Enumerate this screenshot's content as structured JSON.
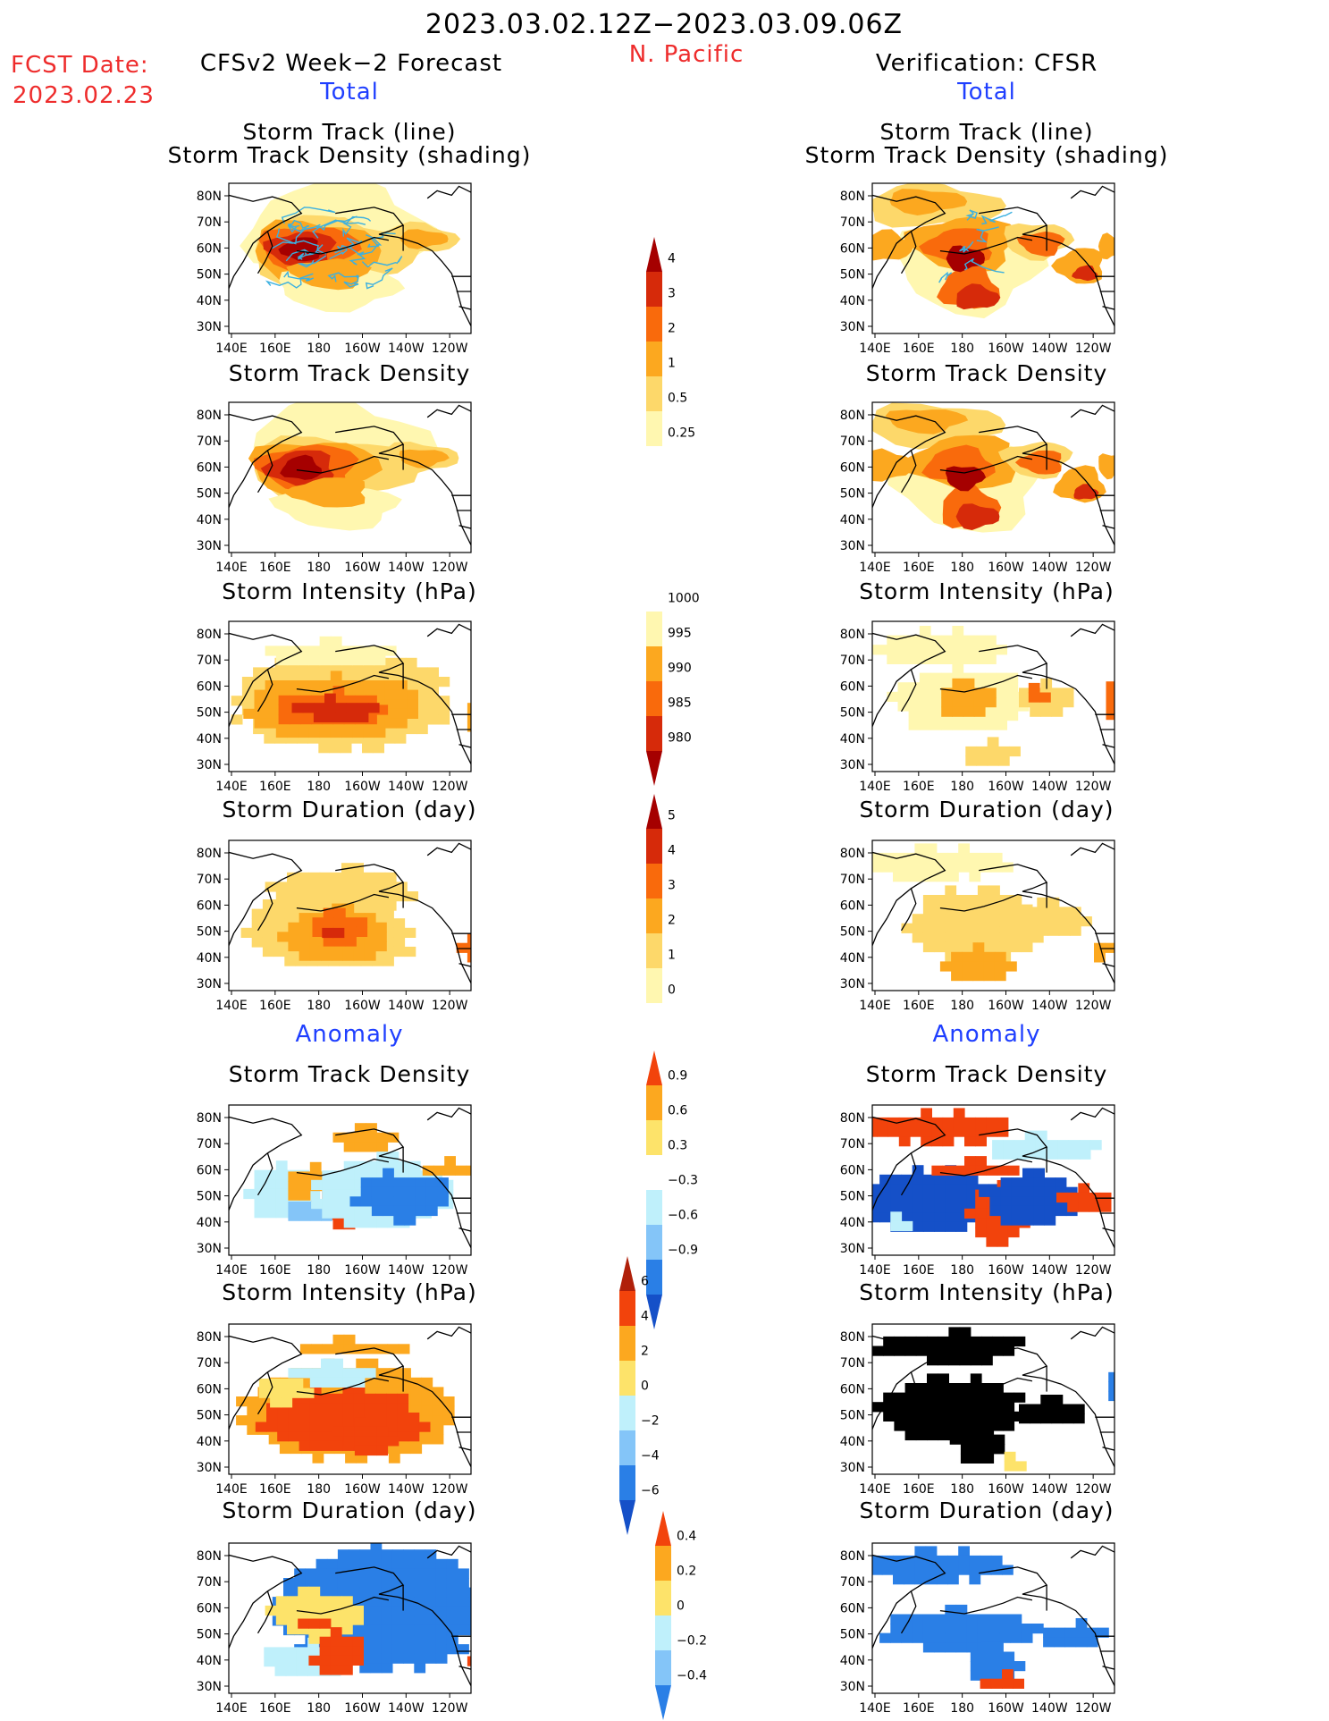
{
  "header": {
    "period": "2023.03.02.12Z−2023.03.09.06Z",
    "region": "N. Pacific",
    "fcst_label": "FCST Date:",
    "fcst_date": "2023.02.23",
    "left_title": "CFSv2 Week−2 Forecast",
    "right_title": "Verification: CFSR",
    "total_left": "Total",
    "total_right": "Total",
    "anomaly_left": "Anomaly",
    "anomaly_right": "Anomaly"
  },
  "colors": {
    "total_ramp": [
      "#fff7b0",
      "#fdd86a",
      "#fca81f",
      "#f96a0c",
      "#d62a0a",
      "#a50000"
    ],
    "anom_pos": [
      "#fde36a",
      "#fca81f",
      "#f2430c"
    ],
    "anom_neg": [
      "#bff0fb",
      "#84c5f8",
      "#2a7fe6",
      "#1550c8"
    ],
    "track_line": "#3bb0e0"
  },
  "chart_data": [
    {
      "id": "fcst-track-line",
      "type": "heatmap",
      "title": "Storm Track (line)",
      "subtitle": "Storm Track Density (shading)",
      "column": "forecast",
      "section": "total"
    },
    {
      "id": "fcst-track-density",
      "type": "heatmap",
      "title": "Storm Track Density",
      "column": "forecast",
      "section": "total"
    },
    {
      "id": "fcst-intensity",
      "type": "heatmap",
      "title": "Storm Intensity (hPa)",
      "column": "forecast",
      "section": "total"
    },
    {
      "id": "fcst-duration",
      "type": "heatmap",
      "title": "Storm Duration (day)",
      "column": "forecast",
      "section": "total"
    },
    {
      "id": "fcst-anom-density",
      "type": "heatmap",
      "title": "Storm Track Density",
      "column": "forecast",
      "section": "anomaly"
    },
    {
      "id": "fcst-anom-intensity",
      "type": "heatmap",
      "title": "Storm Intensity (hPa)",
      "column": "forecast",
      "section": "anomaly"
    },
    {
      "id": "fcst-anom-duration",
      "type": "heatmap",
      "title": "Storm Duration (day)",
      "column": "forecast",
      "section": "anomaly"
    },
    {
      "id": "ver-track-line",
      "type": "heatmap",
      "title": "Storm Track (line)",
      "subtitle": "Storm Track Density (shading)",
      "column": "verification",
      "section": "total"
    },
    {
      "id": "ver-track-density",
      "type": "heatmap",
      "title": "Storm Track Density",
      "column": "verification",
      "section": "total"
    },
    {
      "id": "ver-intensity",
      "type": "heatmap",
      "title": "Storm Intensity (hPa)",
      "column": "verification",
      "section": "total"
    },
    {
      "id": "ver-duration",
      "type": "heatmap",
      "title": "Storm Duration (day)",
      "column": "verification",
      "section": "total"
    },
    {
      "id": "ver-anom-density",
      "type": "heatmap",
      "title": "Storm Track Density",
      "column": "verification",
      "section": "anomaly"
    },
    {
      "id": "ver-anom-intensity",
      "type": "heatmap",
      "title": "Storm Intensity (hPa)",
      "column": "verification",
      "section": "anomaly"
    },
    {
      "id": "ver-anom-duration",
      "type": "heatmap",
      "title": "Storm Duration (day)",
      "column": "verification",
      "section": "anomaly"
    }
  ],
  "axes": {
    "x_ticks": [
      "140E",
      "160E",
      "180",
      "160W",
      "140W",
      "120W"
    ],
    "y_ticks": [
      "80N",
      "70N",
      "60N",
      "50N",
      "40N",
      "30N"
    ]
  },
  "colorbars": [
    {
      "id": "cb-density",
      "labels": [
        "4",
        "3",
        "2",
        "1",
        "0.5",
        "0.25"
      ]
    },
    {
      "id": "cb-intensity",
      "labels": [
        "1000",
        "995",
        "990",
        "985",
        "980"
      ]
    },
    {
      "id": "cb-duration",
      "labels": [
        "5",
        "4",
        "3",
        "2",
        "1",
        "0"
      ]
    },
    {
      "id": "cb-anom-density",
      "labels": [
        "0.9",
        "0.6",
        "0.3",
        "−0.3",
        "−0.6",
        "−0.9"
      ]
    },
    {
      "id": "cb-anom-intensity",
      "labels": [
        "6",
        "4",
        "2",
        "0",
        "−2",
        "−4",
        "−6"
      ]
    },
    {
      "id": "cb-anom-duration",
      "labels": [
        "0.4",
        "0.2",
        "0",
        "−0.2",
        "−0.4"
      ]
    }
  ]
}
